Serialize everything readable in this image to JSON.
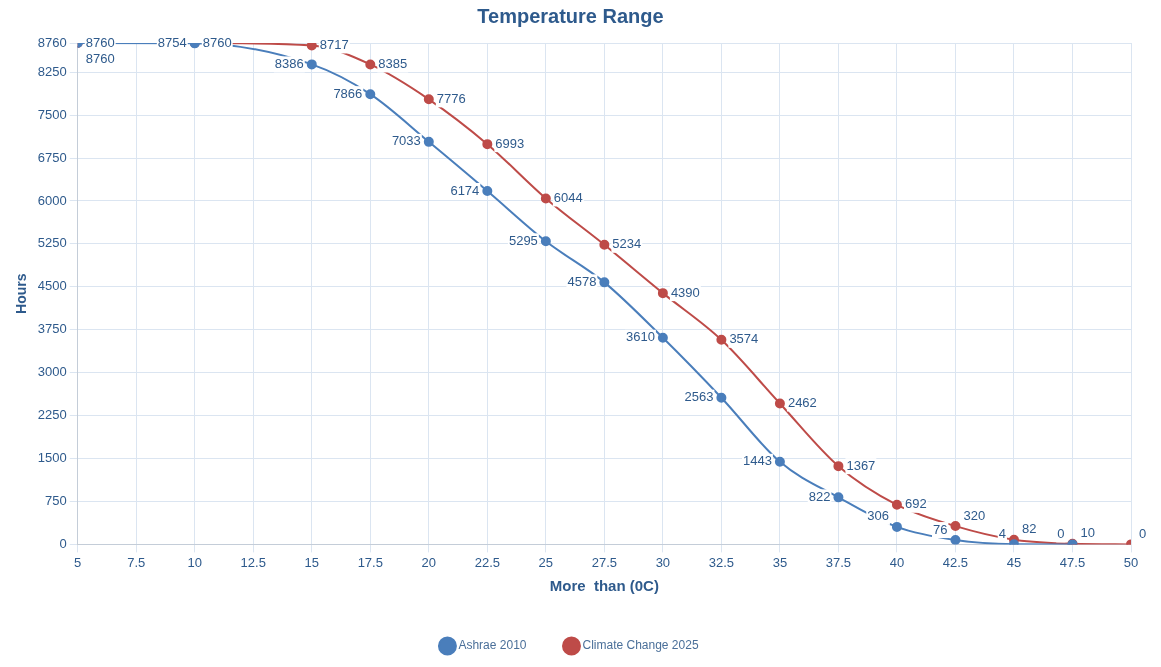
{
  "chart_data": {
    "type": "line",
    "title": "Temperature Range",
    "xlabel": "More  than (0C)",
    "ylabel": "Hours",
    "x": [
      5,
      10,
      15,
      17.5,
      20,
      22.5,
      25,
      27.5,
      30,
      32.5,
      35,
      37.5,
      40,
      42.5,
      45,
      47.5,
      50
    ],
    "series": [
      {
        "name": "Ashrae 2010",
        "color": "#4a7ebb",
        "values": [
          8760,
          8754,
          8386,
          7866,
          7033,
          6174,
          5295,
          4578,
          3610,
          2563,
          1443,
          822,
          306,
          76,
          4,
          0,
          null
        ]
      },
      {
        "name": "Climate Change 2025",
        "color": "#be4b48",
        "values": [
          8760,
          8760,
          8717,
          8385,
          7776,
          6993,
          6044,
          5234,
          4390,
          3574,
          2462,
          1367,
          692,
          320,
          82,
          10,
          0
        ]
      }
    ],
    "xlim": [
      5,
      50
    ],
    "xticks": [
      5,
      7.5,
      10,
      12.5,
      15,
      17.5,
      20,
      22.5,
      25,
      27.5,
      30,
      32.5,
      35,
      37.5,
      40,
      42.5,
      45,
      47.5,
      50
    ],
    "ylim": [
      0,
      8760
    ],
    "yticks": [
      0,
      750,
      1500,
      2250,
      3000,
      3750,
      4500,
      5250,
      6000,
      6750,
      7500,
      8250,
      8760
    ],
    "grid": true,
    "legend": "bottom",
    "marker": "circle",
    "line_style": "solid",
    "data_labels": true
  }
}
